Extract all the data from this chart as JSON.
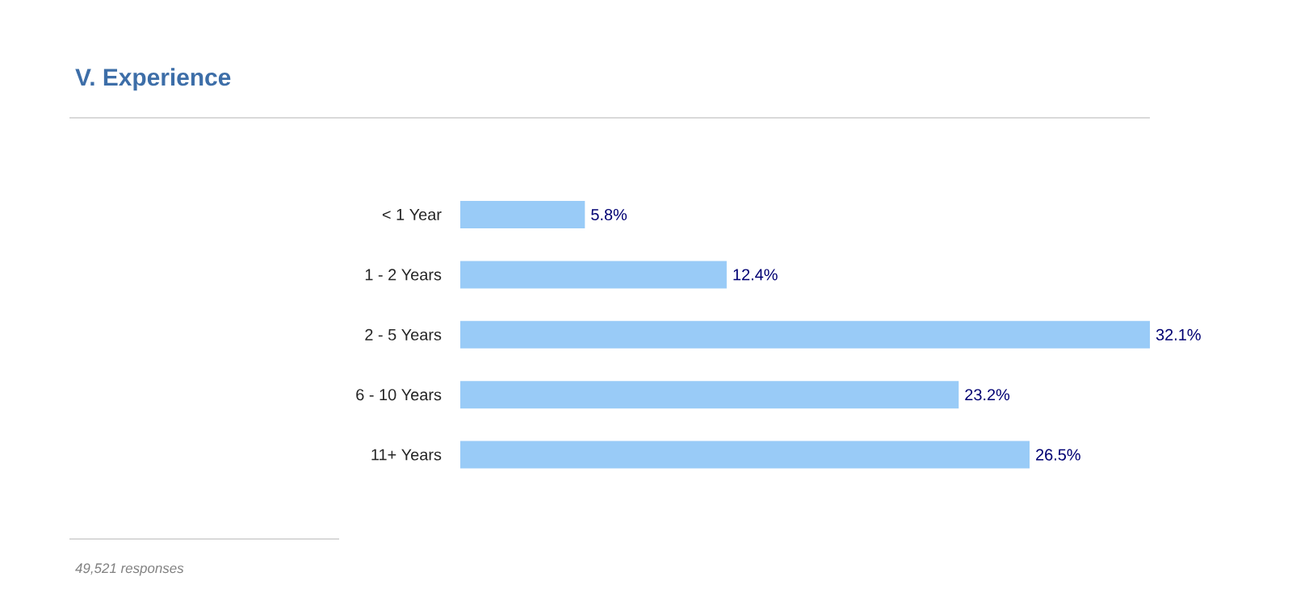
{
  "chart_data": {
    "type": "bar",
    "orientation": "horizontal",
    "title": "V. Experience",
    "categories": [
      "< 1 Year",
      "1 - 2 Years",
      "2 - 5 Years",
      "6 - 10 Years",
      "11+ Years"
    ],
    "values": [
      5.8,
      12.4,
      32.1,
      23.2,
      26.5
    ],
    "value_labels": [
      "5.8%",
      "12.4%",
      "32.1%",
      "23.2%",
      "26.5%"
    ],
    "color": "#99cbf7",
    "annotations": [
      "49,521 responses"
    ]
  }
}
